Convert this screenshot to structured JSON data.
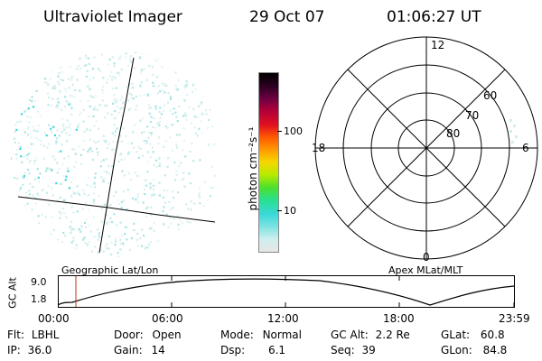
{
  "header": {
    "instrument": "Ultraviolet Imager",
    "date": "29 Oct 07",
    "time": "01:06:27 UT"
  },
  "colorbar": {
    "unit_label": "photon cm⁻²s⁻¹",
    "ticks": [
      "100",
      "10"
    ],
    "colors": [
      "#e6e6e6",
      "#cfeeee",
      "#7fe3e3",
      "#3ad8d8",
      "#28e090",
      "#4ce02c",
      "#b6ea00",
      "#f4d800",
      "#ff9a00",
      "#ff5a00",
      "#e01020",
      "#b0003a",
      "#6a0040",
      "#2a0020",
      "#000000"
    ]
  },
  "polar": {
    "mlt_labels": {
      "top": "12",
      "left": "18",
      "right": "6",
      "bottom": "0"
    },
    "lat_labels": [
      "60",
      "70",
      "80"
    ]
  },
  "labels": {
    "left_panel": "Geographic Lat/Lon",
    "right_panel": "Apex MLat/MLT"
  },
  "timeline": {
    "y_axis_label": "GC Alt",
    "y_ticks": [
      "9.0",
      "1.8"
    ],
    "x_ticks": [
      "00:00",
      "06:00",
      "12:00",
      "18:00",
      "23:59"
    ],
    "current_marker_color": "#c03010"
  },
  "status": {
    "filter_label": "Flt:",
    "filter_value": "LBHL",
    "ip_label": "IP:",
    "ip_value": "36.0",
    "door_label": "Door:",
    "door_value": "Open",
    "gain_label": "Gain:",
    "gain_value": "14",
    "mode_label": "Mode:",
    "mode_value": "Normal",
    "dsp_label": "Dsp:",
    "dsp_value": "6.1",
    "gcalt_label": "GC Alt:",
    "gcalt_value": "2.2 Re",
    "seq_label": "Seq:",
    "seq_value": "39",
    "glat_label": "GLat:",
    "glat_value": "60.8",
    "glon_label": "GLon:",
    "glon_value": "84.8"
  }
}
